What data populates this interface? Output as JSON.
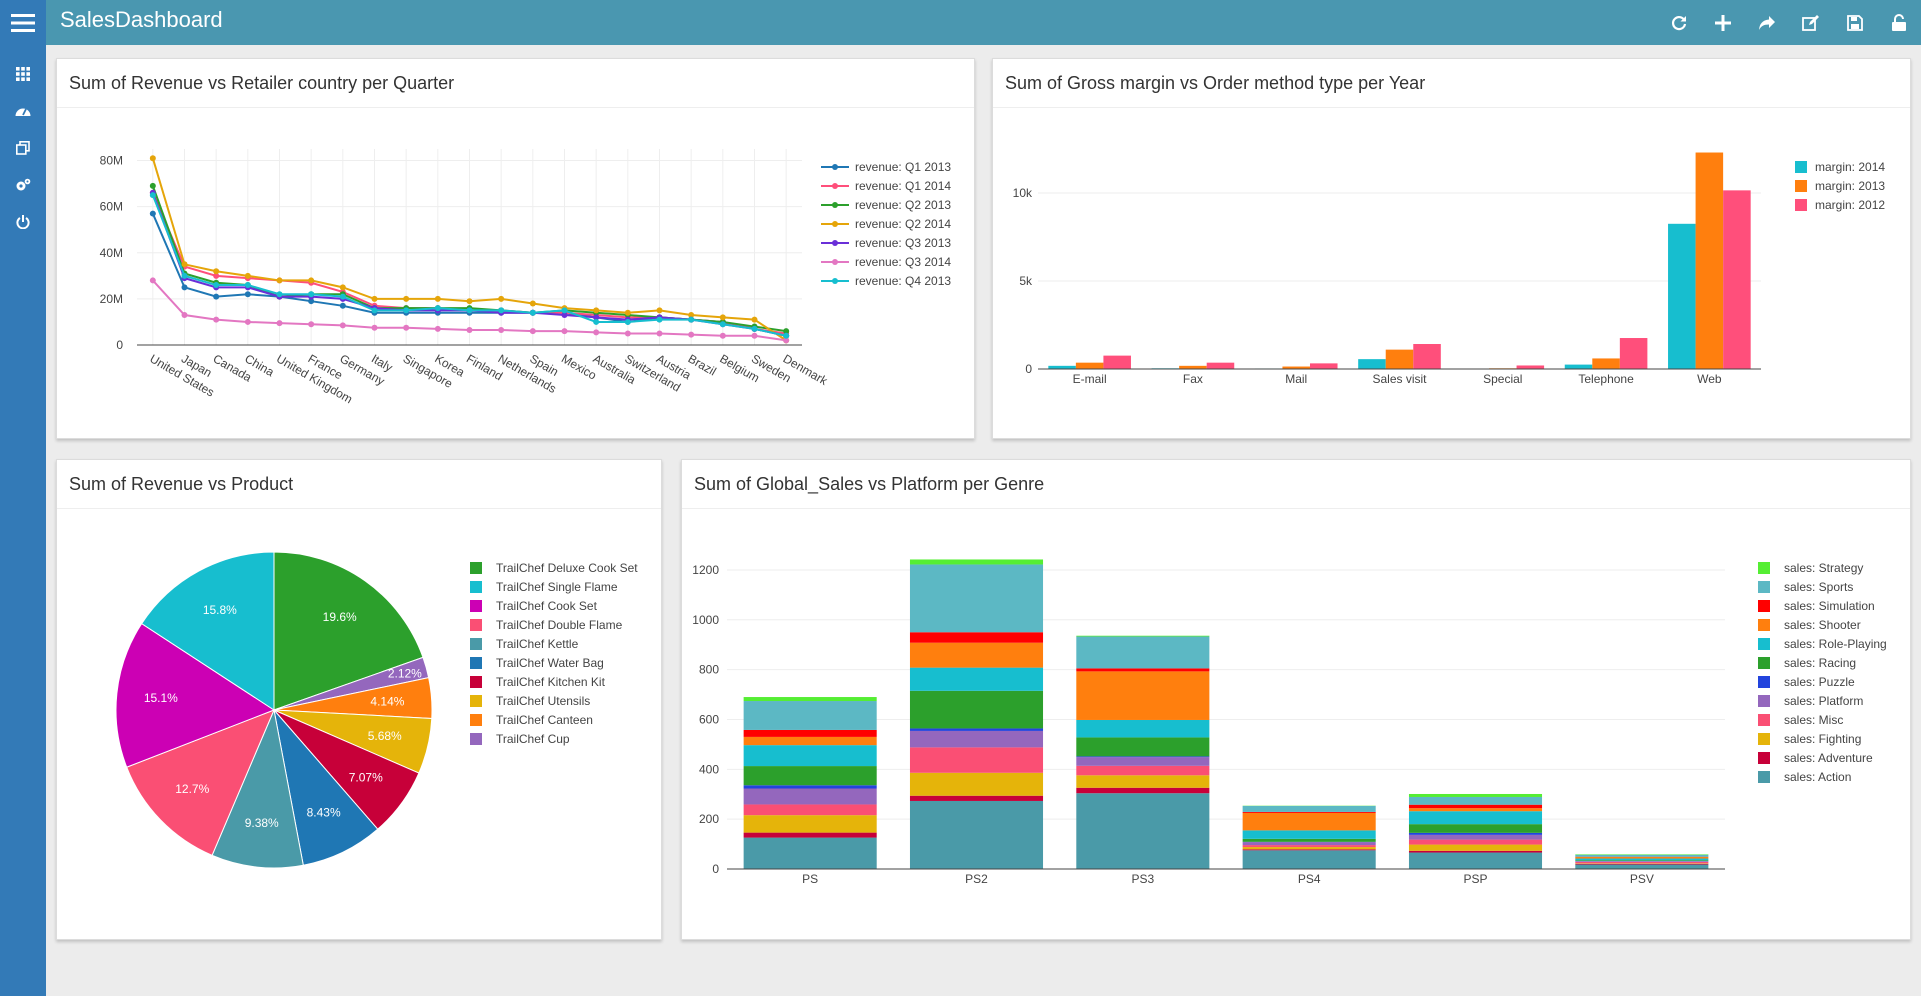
{
  "app": {
    "title": "SalesDashboard"
  },
  "toolbar": {
    "icons": [
      "refresh-icon",
      "plus-icon",
      "share-icon",
      "edit-icon",
      "save-icon",
      "unlock-icon"
    ]
  },
  "sidebar": {
    "icons": [
      "grid-icon",
      "dashboard-icon",
      "copy-icon",
      "gears-icon",
      "power-icon"
    ]
  },
  "colors": {
    "topbar": "#4a97b0",
    "sidebar": "#337ab7"
  },
  "panels": {
    "p1": {
      "title": "Sum of Revenue vs Retailer country per Quarter"
    },
    "p2": {
      "title": "Sum of Gross margin vs Order method type per Year"
    },
    "p3": {
      "title": "Sum of Revenue vs Product"
    },
    "p4": {
      "title": "Sum of Global_Sales vs Platform per Genre"
    }
  },
  "chart_data": [
    {
      "type": "line",
      "title": "Sum of Revenue vs Retailer country per Quarter",
      "categories": [
        "United States",
        "Japan",
        "Canada",
        "China",
        "United Kingdom",
        "France",
        "Germany",
        "Italy",
        "Singapore",
        "Korea",
        "Finland",
        "Netherlands",
        "Spain",
        "Mexico",
        "Australia",
        "Switzerland",
        "Austria",
        "Brazil",
        "Belgium",
        "Sweden",
        "Denmark"
      ],
      "ylim": [
        0,
        85
      ],
      "yticks": [
        0,
        20,
        40,
        60,
        80
      ],
      "ytick_labels": [
        "0",
        "20M",
        "40M",
        "60M",
        "80M"
      ],
      "legend": "top-right",
      "grid": true,
      "series": [
        {
          "name": "revenue: Q1 2013",
          "color": "#1f77b4",
          "values": [
            57,
            25,
            21,
            22,
            21,
            19,
            17,
            14,
            14,
            14,
            14,
            14,
            14,
            14,
            12,
            10,
            12,
            11,
            10,
            7,
            4
          ]
        },
        {
          "name": "revenue: Q1 2014",
          "color": "#ff4f7b",
          "values": [
            66,
            34,
            30,
            29,
            28,
            27,
            23,
            17,
            16,
            16,
            15,
            15,
            14,
            14,
            13,
            12,
            12,
            11,
            10,
            7,
            5
          ]
        },
        {
          "name": "revenue: Q2 2013",
          "color": "#2ca02c",
          "values": [
            69,
            31,
            27,
            26,
            21,
            22,
            22,
            16,
            16,
            16,
            16,
            15,
            14,
            15,
            14,
            13,
            12,
            11,
            10,
            8,
            6
          ]
        },
        {
          "name": "revenue: Q2 2014",
          "color": "#e5a50a",
          "values": [
            81,
            35,
            32,
            30,
            28,
            28,
            25,
            20,
            20,
            20,
            19,
            20,
            18,
            16,
            15,
            14,
            15,
            13,
            12,
            11,
            2
          ]
        },
        {
          "name": "revenue: Q3 2013",
          "color": "#6a2fd8",
          "values": [
            66,
            29,
            25,
            25,
            21,
            21,
            20,
            16,
            15,
            15,
            15,
            14,
            14,
            13,
            12,
            11,
            12,
            11,
            9,
            7,
            4
          ]
        },
        {
          "name": "revenue: Q3 2014",
          "color": "#e377c2",
          "values": [
            28,
            13,
            11,
            10,
            9.5,
            9,
            8.5,
            7.5,
            7.5,
            7,
            6.5,
            6.5,
            6,
            6,
            5.5,
            5,
            5,
            4.5,
            4,
            4,
            2
          ]
        },
        {
          "name": "revenue: Q4 2013",
          "color": "#17becf",
          "values": [
            65,
            30,
            26,
            26,
            22,
            22,
            21,
            15,
            15,
            16,
            15,
            15,
            14,
            15,
            10,
            10,
            11,
            11,
            9,
            7,
            4
          ]
        }
      ]
    },
    {
      "type": "bar",
      "title": "Sum of Gross margin vs Order method type per Year",
      "categories": [
        "E-mail",
        "Fax",
        "Mail",
        "Sales visit",
        "Special",
        "Telephone",
        "Web"
      ],
      "ylim": [
        0,
        12500
      ],
      "yticks": [
        0,
        5000,
        10000
      ],
      "ytick_labels": [
        "0",
        "5k",
        "10k"
      ],
      "legend": "top-right",
      "series": [
        {
          "name": "margin: 2014",
          "color": "#17becf",
          "values": [
            180,
            40,
            30,
            560,
            20,
            250,
            8250
          ]
        },
        {
          "name": "margin: 2013",
          "color": "#ff7f0e",
          "values": [
            360,
            180,
            140,
            1100,
            40,
            600,
            12300
          ]
        },
        {
          "name": "margin: 2012",
          "color": "#ff4f7b",
          "values": [
            760,
            360,
            320,
            1420,
            200,
            1760,
            10150
          ]
        }
      ]
    },
    {
      "type": "pie",
      "title": "Sum of Revenue vs Product",
      "legend": "right",
      "slices": [
        {
          "label": "TrailChef Deluxe Cook Set",
          "value": 19.6,
          "text": "19.6%",
          "color": "#2ca02c"
        },
        {
          "label": "TrailChef Cup",
          "value": 2.12,
          "text": "2.12%",
          "color": "#9467bd"
        },
        {
          "label": "TrailChef Canteen",
          "value": 4.14,
          "text": "4.14%",
          "color": "#ff7f0e"
        },
        {
          "label": "TrailChef Utensils",
          "value": 5.68,
          "text": "5.68%",
          "color": "#e5b40a"
        },
        {
          "label": "TrailChef Kitchen Kit",
          "value": 7.07,
          "text": "7.07%",
          "color": "#c70039"
        },
        {
          "label": "TrailChef Water Bag",
          "value": 8.43,
          "text": "8.43%",
          "color": "#1f77b4"
        },
        {
          "label": "TrailChef Kettle",
          "value": 9.38,
          "text": "9.38%",
          "color": "#4a9aa8"
        },
        {
          "label": "TrailChef Double Flame",
          "value": 12.7,
          "text": "12.7%",
          "color": "#fa4f74"
        },
        {
          "label": "TrailChef Cook Set",
          "value": 15.1,
          "text": "15.1%",
          "color": "#cc00b4"
        },
        {
          "label": "TrailChef Single Flame",
          "value": 15.8,
          "text": "15.8%",
          "color": "#17becf"
        }
      ],
      "legend_order": [
        "TrailChef Deluxe Cook Set",
        "TrailChef Single Flame",
        "TrailChef Cook Set",
        "TrailChef Double Flame",
        "TrailChef Kettle",
        "TrailChef Water Bag",
        "TrailChef Kitchen Kit",
        "TrailChef Utensils",
        "TrailChef Canteen",
        "TrailChef Cup"
      ]
    },
    {
      "type": "bar",
      "stacked": true,
      "title": "Sum of Global_Sales vs Platform per Genre",
      "categories": [
        "PS",
        "PS2",
        "PS3",
        "PS4",
        "PSP",
        "PSV"
      ],
      "ylim": [
        0,
        1280
      ],
      "yticks": [
        0,
        200,
        400,
        600,
        800,
        1000,
        1200
      ],
      "ytick_labels": [
        "0",
        "200",
        "400",
        "600",
        "800",
        "1000",
        "1200"
      ],
      "legend": "top-right",
      "series": [
        {
          "name": "sales: Action",
          "color": "#4a9aa8",
          "values": [
            126,
            273,
            304,
            75,
            66,
            18
          ]
        },
        {
          "name": "sales: Adventure",
          "color": "#c70039",
          "values": [
            20,
            21,
            22,
            4,
            7,
            3
          ]
        },
        {
          "name": "sales: Fighting",
          "color": "#e5b40a",
          "values": [
            70,
            92,
            50,
            9,
            25,
            2
          ]
        },
        {
          "name": "sales: Misc",
          "color": "#fa4f74",
          "values": [
            43,
            102,
            38,
            8,
            20,
            6
          ]
        },
        {
          "name": "sales: Platform",
          "color": "#9467bd",
          "values": [
            64,
            66,
            35,
            12,
            19,
            2
          ]
        },
        {
          "name": "sales: Puzzle",
          "color": "#2244dd",
          "values": [
            13,
            10,
            3,
            1,
            8,
            1
          ]
        },
        {
          "name": "sales: Racing",
          "color": "#2ca02c",
          "values": [
            77,
            151,
            76,
            12,
            35,
            3
          ]
        },
        {
          "name": "sales: Role-Playing",
          "color": "#17becf",
          "values": [
            84,
            93,
            70,
            34,
            52,
            7
          ]
        },
        {
          "name": "sales: Shooter",
          "color": "#ff7f0e",
          "values": [
            33,
            100,
            195,
            70,
            12,
            6
          ]
        },
        {
          "name": "sales: Simulation",
          "color": "#ff0000",
          "values": [
            28,
            42,
            12,
            4,
            14,
            1
          ]
        },
        {
          "name": "sales: Sports",
          "color": "#5cb8c4",
          "values": [
            116,
            272,
            128,
            24,
            31,
            8
          ]
        },
        {
          "name": "sales: Strategy",
          "color": "#55ee33",
          "values": [
            16,
            20,
            3,
            1,
            12,
            2
          ]
        }
      ]
    }
  ]
}
